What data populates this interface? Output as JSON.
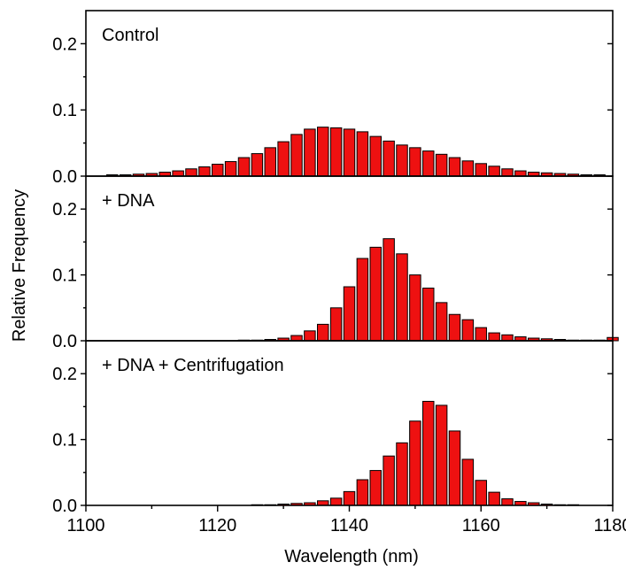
{
  "chart_data": [
    {
      "type": "bar",
      "panel_label": "Control",
      "x": [
        1104,
        1106,
        1108,
        1110,
        1112,
        1114,
        1116,
        1118,
        1120,
        1122,
        1124,
        1126,
        1128,
        1130,
        1132,
        1134,
        1136,
        1138,
        1140,
        1142,
        1144,
        1146,
        1148,
        1150,
        1152,
        1154,
        1156,
        1158,
        1160,
        1162,
        1164,
        1166,
        1168,
        1170,
        1172,
        1174,
        1176,
        1178
      ],
      "values": [
        0.002,
        0.002,
        0.003,
        0.004,
        0.006,
        0.008,
        0.011,
        0.014,
        0.018,
        0.022,
        0.028,
        0.034,
        0.043,
        0.052,
        0.063,
        0.071,
        0.074,
        0.073,
        0.071,
        0.067,
        0.06,
        0.053,
        0.047,
        0.043,
        0.038,
        0.033,
        0.028,
        0.023,
        0.019,
        0.015,
        0.011,
        0.008,
        0.006,
        0.005,
        0.004,
        0.003,
        0.002,
        0.002
      ],
      "ylim": [
        0,
        0.25
      ],
      "yticks": [
        "0.0",
        "0.1",
        "0.2"
      ]
    },
    {
      "type": "bar",
      "panel_label": "+ DNA",
      "x": [
        1104,
        1106,
        1108,
        1110,
        1112,
        1114,
        1116,
        1118,
        1120,
        1122,
        1124,
        1126,
        1128,
        1130,
        1132,
        1134,
        1136,
        1138,
        1140,
        1142,
        1144,
        1146,
        1148,
        1150,
        1152,
        1154,
        1156,
        1158,
        1160,
        1162,
        1164,
        1166,
        1168,
        1170,
        1172,
        1174,
        1176,
        1178,
        1180
      ],
      "values": [
        0.0,
        0.0,
        0.0,
        0.0,
        0.0,
        0.0,
        0.0,
        0.0,
        0.0,
        0.0,
        0.001,
        0.001,
        0.002,
        0.004,
        0.008,
        0.015,
        0.025,
        0.05,
        0.082,
        0.125,
        0.142,
        0.155,
        0.132,
        0.1,
        0.08,
        0.058,
        0.04,
        0.032,
        0.02,
        0.012,
        0.009,
        0.006,
        0.004,
        0.003,
        0.002,
        0.001,
        0.001,
        0.001,
        0.005
      ],
      "ylim": [
        0,
        0.25
      ],
      "yticks": [
        "0.0",
        "0.1",
        "0.2"
      ]
    },
    {
      "type": "bar",
      "panel_label": "+ DNA + Centrifugation",
      "x": [
        1104,
        1106,
        1108,
        1110,
        1112,
        1114,
        1116,
        1118,
        1120,
        1122,
        1124,
        1126,
        1128,
        1130,
        1132,
        1134,
        1136,
        1138,
        1140,
        1142,
        1144,
        1146,
        1148,
        1150,
        1152,
        1154,
        1156,
        1158,
        1160,
        1162,
        1164,
        1166,
        1168,
        1170,
        1172,
        1174,
        1176,
        1178
      ],
      "values": [
        0.0,
        0.0,
        0.0,
        0.0,
        0.0,
        0.0,
        0.0,
        0.0,
        0.0,
        0.0,
        0.0,
        0.001,
        0.001,
        0.002,
        0.003,
        0.004,
        0.007,
        0.011,
        0.021,
        0.039,
        0.053,
        0.075,
        0.095,
        0.128,
        0.158,
        0.152,
        0.113,
        0.07,
        0.038,
        0.02,
        0.01,
        0.006,
        0.004,
        0.002,
        0.001,
        0.001,
        0.0,
        0.0
      ],
      "ylim": [
        0,
        0.25
      ],
      "yticks": [
        "0.0",
        "0.1",
        "0.2"
      ]
    }
  ],
  "xlim": [
    1100,
    1180
  ],
  "xticks": [
    "1100",
    "1120",
    "1140",
    "1160",
    "1180"
  ],
  "xlabel": "Wavelength (nm)",
  "ylabel": "Relative Frequency",
  "bar_color": "#ee1111",
  "grid": false
}
